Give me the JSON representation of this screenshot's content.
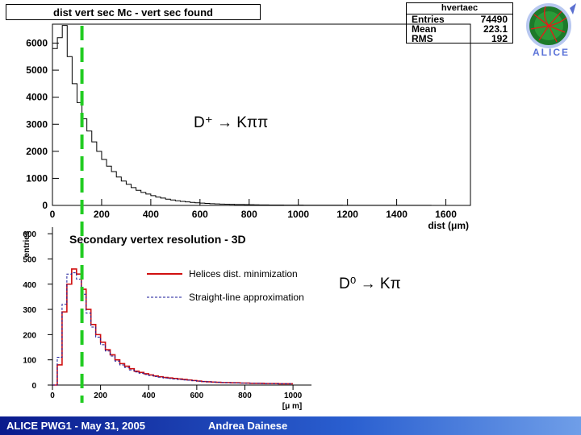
{
  "upper_title": "dist vert sec Mc - vert sec found",
  "stats": {
    "title": "hvertaec",
    "rows": [
      {
        "label": "Entries",
        "value": "74490"
      },
      {
        "label": "Mean",
        "value": "223.1"
      },
      {
        "label": "RMS",
        "value": "192"
      }
    ]
  },
  "annotations": {
    "upper_decay": "D⁺ → Kππ",
    "lower_decay": "D⁰ → Kπ"
  },
  "footer": {
    "left": "ALICE PWG1 - May 31, 2005",
    "right": "Andrea Dainese"
  },
  "logo_text": "ALICE",
  "colors": {
    "dashed_marker": "#22cc22",
    "helices": "#d01010",
    "straight": "#1a1a99",
    "footer_bg": "#1a3cb0"
  },
  "chart_data": [
    {
      "type": "histogram",
      "title": "dist vert sec Mc - vert sec found",
      "xlabel": "dist (μm)",
      "ylabel": "",
      "xlim": [
        0,
        1700
      ],
      "ylim": [
        0,
        6700
      ],
      "xticks": [
        "0",
        "200",
        "400",
        "600",
        "800",
        "1000",
        "1200",
        "1400",
        "1600"
      ],
      "yticks": [
        "0",
        "1000",
        "2000",
        "3000",
        "4000",
        "5000",
        "6000"
      ],
      "grid": false,
      "series": [
        {
          "bin_width": 20,
          "bin_edges_start": 0,
          "values": [
            5800,
            6200,
            6650,
            5500,
            4500,
            3800,
            3200,
            2750,
            2350,
            2000,
            1700,
            1450,
            1250,
            1050,
            900,
            780,
            660,
            560,
            480,
            420,
            360,
            310,
            270,
            230,
            200,
            170,
            150,
            130,
            110,
            95,
            85,
            75,
            65,
            55,
            50,
            45,
            40,
            35,
            32,
            28,
            25,
            22,
            20,
            18,
            16,
            15,
            14,
            13,
            12,
            11,
            10,
            9,
            9,
            8,
            8,
            7,
            7,
            6,
            6,
            5,
            5,
            5,
            4,
            4,
            4,
            3,
            3,
            3,
            3,
            2,
            2,
            2,
            2,
            2,
            2,
            2,
            2,
            1,
            1,
            1,
            1,
            1,
            1,
            1,
            1
          ]
        }
      ],
      "stats": {
        "Entries": "74490",
        "Mean": "223.1",
        "RMS": "192"
      },
      "marker_x": 120
    },
    {
      "type": "histogram",
      "title": "Secondary vertex resolution - 3D",
      "xlabel": "[μ m]",
      "ylabel": "entries",
      "xlim": [
        0,
        1050
      ],
      "ylim": [
        0,
        610
      ],
      "xticks": [
        "0",
        "200",
        "400",
        "600",
        "800",
        "1000"
      ],
      "yticks": [
        "0",
        "100",
        "200",
        "300",
        "400",
        "500",
        "600"
      ],
      "legend_position": "top-right",
      "grid": false,
      "bin_width": 20,
      "series": [
        {
          "name": "Helices dist. minimization",
          "values": [
            0,
            80,
            290,
            400,
            460,
            440,
            380,
            300,
            240,
            200,
            170,
            140,
            120,
            100,
            85,
            75,
            65,
            55,
            50,
            45,
            40,
            36,
            33,
            30,
            28,
            26,
            24,
            22,
            20,
            18,
            16,
            14,
            13,
            12,
            11,
            10,
            10,
            9,
            9,
            8,
            8,
            7,
            7,
            7,
            6,
            6,
            6,
            5,
            5,
            5
          ]
        },
        {
          "name": "Straight-line approximation",
          "values": [
            0,
            110,
            320,
            440,
            445,
            420,
            360,
            285,
            230,
            190,
            160,
            135,
            115,
            95,
            80,
            70,
            60,
            52,
            47,
            42,
            38,
            34,
            31,
            28,
            26,
            24,
            22,
            20,
            19,
            17,
            15,
            14,
            13,
            12,
            11,
            10,
            9,
            9,
            8,
            8,
            7,
            7,
            7,
            6,
            6,
            6,
            5,
            5,
            5,
            5
          ]
        }
      ],
      "marker_x": 120
    }
  ]
}
